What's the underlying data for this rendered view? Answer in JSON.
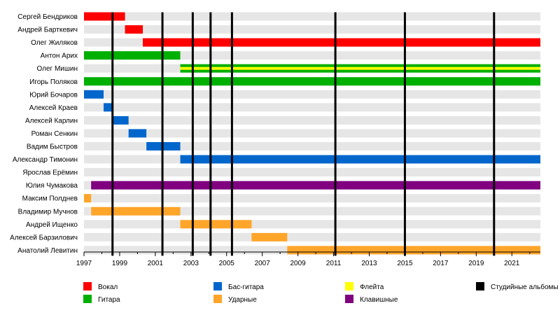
{
  "chart_data": {
    "type": "timeline",
    "x_axis": {
      "range": [
        1997,
        2022.6
      ],
      "tick_labels": [
        "1997",
        "1999",
        "2001",
        "2003",
        "2005",
        "2007",
        "2009",
        "2011",
        "2013",
        "2015",
        "2017",
        "2019",
        "2021"
      ],
      "tick_values": [
        1997,
        1999,
        2001,
        2003,
        2005,
        2007,
        2009,
        2011,
        2013,
        2015,
        2017,
        2019,
        2021
      ]
    },
    "colors": {
      "vocals": "#ff0000",
      "guitar": "#00b000",
      "bass": "#0066cc",
      "drums": "#ffa529",
      "flute": "#ffff00",
      "keys": "#800080",
      "albums": "#000000",
      "row_bg": "#e6e6e6"
    },
    "members": [
      {
        "name": "Сергей Бендриков",
        "periods": [
          {
            "role": "vocals",
            "start": 1997.0,
            "end": 1999.3
          }
        ]
      },
      {
        "name": "Андрей Барткевич",
        "periods": [
          {
            "role": "vocals",
            "start": 1999.3,
            "end": 2000.3
          }
        ]
      },
      {
        "name": "Олег Жиляков",
        "periods": [
          {
            "role": "vocals",
            "start": 2000.3,
            "end": 2022.6
          }
        ]
      },
      {
        "name": "Антон Арих",
        "periods": [
          {
            "role": "guitar",
            "start": 1997.0,
            "end": 2002.4
          }
        ]
      },
      {
        "name": "Олег Мишин",
        "periods": [
          {
            "role": "guitar",
            "start": 2002.4,
            "end": 2022.6,
            "secondary": "flute"
          }
        ]
      },
      {
        "name": "Игорь Поляков",
        "periods": [
          {
            "role": "guitar",
            "start": 1997.0,
            "end": 2022.6
          }
        ]
      },
      {
        "name": "Юрий Бочаров",
        "periods": [
          {
            "role": "bass",
            "start": 1997.0,
            "end": 1998.1
          }
        ]
      },
      {
        "name": "Алексей Краев",
        "periods": [
          {
            "role": "bass",
            "start": 1998.1,
            "end": 1998.55
          }
        ]
      },
      {
        "name": "Алексей Карлин",
        "periods": [
          {
            "role": "bass",
            "start": 1998.55,
            "end": 1999.5
          }
        ]
      },
      {
        "name": "Роман Сенкин",
        "periods": [
          {
            "role": "bass",
            "start": 1999.5,
            "end": 2000.5
          }
        ]
      },
      {
        "name": "Вадим Быстров",
        "periods": [
          {
            "role": "bass",
            "start": 2000.5,
            "end": 2002.4
          }
        ]
      },
      {
        "name": "Александр Тимонин",
        "periods": [
          {
            "role": "bass",
            "start": 2002.4,
            "end": 2022.6
          }
        ]
      },
      {
        "name": "Ярослав Ерёмин",
        "periods": []
      },
      {
        "name": "Юлия Чумакова",
        "periods": [
          {
            "role": "keys",
            "start": 1997.4,
            "end": 2022.6
          }
        ]
      },
      {
        "name": "Максим Полднев",
        "periods": [
          {
            "role": "drums",
            "start": 1997.0,
            "end": 1997.4
          }
        ]
      },
      {
        "name": "Владимир Мучнов",
        "periods": [
          {
            "role": "drums",
            "start": 1997.4,
            "end": 2002.4
          }
        ]
      },
      {
        "name": "Андрей Ищенко",
        "periods": [
          {
            "role": "drums",
            "start": 2002.4,
            "end": 2006.4
          }
        ]
      },
      {
        "name": "Алексей Барзилович",
        "periods": [
          {
            "role": "drums",
            "start": 2006.4,
            "end": 2008.4
          }
        ]
      },
      {
        "name": "Анатолий Левитин",
        "periods": [
          {
            "role": "drums",
            "start": 2008.4,
            "end": 2022.6
          }
        ]
      }
    ],
    "studio_albums": [
      1998.6,
      2001.4,
      2003.1,
      2004.1,
      2005.3,
      2011.1,
      2015.0,
      2020.0
    ],
    "legend": [
      {
        "label": "Вокал",
        "color_key": "vocals"
      },
      {
        "label": "Гитара",
        "color_key": "guitar"
      },
      {
        "label": "Бас-гитара",
        "color_key": "bass"
      },
      {
        "label": "Ударные",
        "color_key": "drums"
      },
      {
        "label": "Флейта",
        "color_key": "flute"
      },
      {
        "label": "Клавишные",
        "color_key": "keys"
      },
      {
        "label": "Студийные альбомы",
        "color_key": "albums"
      }
    ]
  }
}
